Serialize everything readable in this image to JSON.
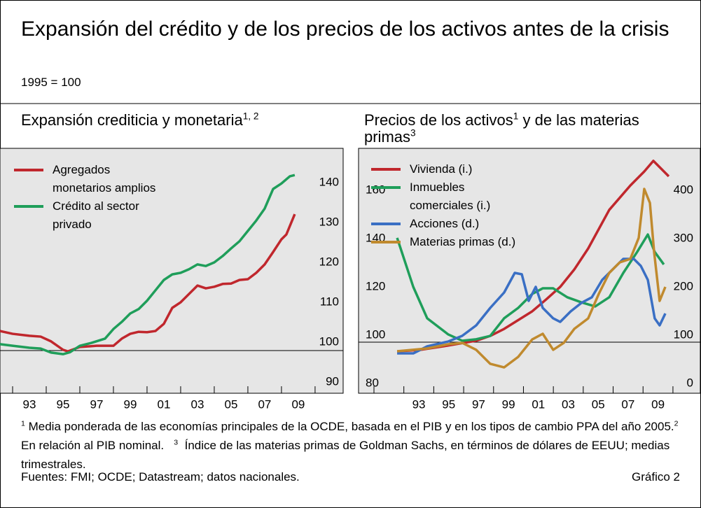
{
  "title": "Expansión del crédito y de los precios de los activos antes de la crisis",
  "subtitle": "1995 = 100",
  "chart_data": [
    {
      "type": "line",
      "title": "Expansión crediticia y monetaria",
      "title_note": "1, 2",
      "xlim": [
        1991.25,
        2011.67
      ],
      "ylim": [
        89.3,
        150.7
      ],
      "xticks": [
        {
          "value": 1993,
          "label": "93"
        },
        {
          "value": 1995,
          "label": "95"
        },
        {
          "value": 1997,
          "label": "97"
        },
        {
          "value": 1999,
          "label": "99"
        },
        {
          "value": 2001,
          "label": "01"
        },
        {
          "value": 2003,
          "label": "03"
        },
        {
          "value": 2005,
          "label": "05"
        },
        {
          "value": 2007,
          "label": "07"
        },
        {
          "value": 2009,
          "label": "09"
        }
      ],
      "xminor": [
        1992,
        1994,
        1996,
        1998,
        2000,
        2002,
        2004,
        2006,
        2008,
        2010
      ],
      "yticks": [
        90,
        100,
        110,
        120,
        130,
        140
      ],
      "hline": 100,
      "legend": "upper left",
      "series": [
        {
          "name": "Agregados monetarios amplios",
          "color": "#c0272d",
          "x": [
            1991.25,
            1992,
            1993,
            1993.67,
            1994.29,
            1995,
            1995.29,
            1996,
            1997,
            1998,
            1998.5,
            1999,
            1999.5,
            2000,
            2000.5,
            2001,
            2001.5,
            2002,
            2002.5,
            2003,
            2003.5,
            2004,
            2004.5,
            2005,
            2005.5,
            2006,
            2006.5,
            2007,
            2007.5,
            2008,
            2008.29,
            2008.79
          ],
          "values": [
            104.9,
            104.2,
            103.7,
            103.5,
            102.3,
            100.2,
            99.8,
            100.9,
            101.2,
            101.2,
            103,
            104.2,
            104.7,
            104.6,
            104.9,
            106.7,
            110.7,
            112.1,
            114.2,
            116.3,
            115.6,
            116,
            116.7,
            116.8,
            117.7,
            117.9,
            119.5,
            121.6,
            124.7,
            127.9,
            129.1,
            134.2
          ]
        },
        {
          "name": "Crédito al sector privado",
          "color": "#1f9e5a",
          "x": [
            1991.25,
            1992,
            1993,
            1993.67,
            1994.29,
            1995,
            1995.42,
            1996,
            1996.67,
            1997.5,
            1998,
            1998.5,
            1999,
            1999.5,
            2000,
            2000.5,
            2001,
            2001.5,
            2002,
            2002.5,
            2003,
            2003.5,
            2004,
            2004.5,
            2005,
            2005.5,
            2006,
            2006.5,
            2007,
            2007.5,
            2008,
            2008.5,
            2008.79
          ],
          "values": [
            101.6,
            101.2,
            100.7,
            100.5,
            99.5,
            99.1,
            99.6,
            101.2,
            101.9,
            103,
            105.4,
            107.2,
            109.3,
            110.4,
            112.5,
            115.1,
            117.7,
            119.1,
            119.5,
            120.4,
            121.6,
            121.2,
            122.1,
            123.7,
            125.6,
            127.4,
            130,
            132.6,
            135.6,
            140.5,
            141.9,
            143.7,
            144
          ]
        }
      ]
    },
    {
      "type": "line",
      "title": "Precios de los activos",
      "title_note": "1",
      "title_cont": "y de las materias primas",
      "title_cont_note": "3",
      "xlim": [
        1988.97,
        2011.83
      ],
      "ylim": [
        78.84,
        180.29
      ],
      "y2lim": [
        -5.8,
        501.45
      ],
      "xticks": [
        {
          "value": 1993,
          "label": "93"
        },
        {
          "value": 1995,
          "label": "95"
        },
        {
          "value": 1997,
          "label": "97"
        },
        {
          "value": 1999,
          "label": "99"
        },
        {
          "value": 2001,
          "label": "01"
        },
        {
          "value": 2003,
          "label": "03"
        },
        {
          "value": 2005,
          "label": "05"
        },
        {
          "value": 2007,
          "label": "07"
        },
        {
          "value": 2009,
          "label": "09"
        }
      ],
      "xminor": [
        1990,
        1992,
        1994,
        1996,
        1998,
        2000,
        2002,
        2004,
        2006,
        2008,
        2010
      ],
      "yticks": [
        80,
        100,
        120,
        140,
        160
      ],
      "y2ticks": [
        0,
        100,
        200,
        300,
        400
      ],
      "hline": 100,
      "legend": "upper left",
      "series": [
        {
          "name": "Vivienda (i.)",
          "color": "#c0272d",
          "x": [
            1991.55,
            1993.09,
            1994.03,
            1994.97,
            1996.84,
            1997.78,
            1998.71,
            2000.59,
            2001.52,
            2002.46,
            2003.4,
            2004.33,
            2005.74,
            2007.15,
            2008.08,
            2008.69,
            2009.72
          ],
          "values": [
            96.2,
            96.8,
            97.7,
            98.6,
            100.6,
            102.6,
            105.5,
            112.8,
            117.7,
            122.9,
            130.1,
            138.8,
            154.8,
            164.9,
            170.7,
            175.1,
            168.7
          ]
        },
        {
          "name": "Inmuebles comerciales (i.)",
          "color": "#1f9e5a",
          "x": [
            1991.55,
            1992.63,
            1993.56,
            1994.97,
            1995.9,
            1996.84,
            1997.78,
            1998.71,
            1999.65,
            2000.59,
            2001.29,
            2001.99,
            2002.93,
            2003.87,
            2004.8,
            2005.74,
            2006.68,
            2007.61,
            2008.32,
            2008.78,
            2009.39
          ],
          "values": [
            143.2,
            122.9,
            109.9,
            103.2,
            100.6,
            101.2,
            102.6,
            109.9,
            114.2,
            120,
            122.3,
            122.3,
            118.6,
            116.5,
            114.8,
            118.6,
            128.7,
            137.4,
            144.6,
            137.4,
            132.2
          ]
        },
        {
          "name": "Acciones (d.)",
          "color": "#3a6fc4",
          "axis": "y2",
          "x": [
            1991.55,
            1992.63,
            1993.56,
            1994.97,
            1995.9,
            1996.84,
            1997.78,
            1998.71,
            1999.42,
            1999.89,
            2000.35,
            2000.82,
            2001.29,
            2001.99,
            2002.46,
            2003.16,
            2003.87,
            2004.57,
            2005.27,
            2005.97,
            2006.68,
            2007.38,
            2007.85,
            2008.32,
            2008.78,
            2009.11,
            2009.49
          ],
          "values": [
            76.8,
            76.8,
            91.3,
            101.4,
            113,
            134.8,
            171,
            202.9,
            243.5,
            240.6,
            185.5,
            214.5,
            171,
            149.3,
            142,
            163.8,
            181.2,
            192.8,
            229,
            250.7,
            272.5,
            272.5,
            258,
            229,
            149.3,
            134.8,
            159.4
          ]
        },
        {
          "name": "Materias primas (d.)",
          "color": "#c08a2e",
          "axis": "y2",
          "x": [
            1991.55,
            1993.56,
            1994.97,
            1995.9,
            1996.84,
            1997.78,
            1998.71,
            1999.65,
            2000.59,
            2001.29,
            2001.99,
            2002.7,
            2003.4,
            2004.33,
            2005.04,
            2005.74,
            2006.44,
            2007.15,
            2007.71,
            2008.08,
            2008.46,
            2008.74,
            2009.11,
            2009.49
          ],
          "values": [
            81.2,
            87,
            95.7,
            98.6,
            84.1,
            55.1,
            47.8,
            69.6,
            105.8,
            117.4,
            84.1,
            98.6,
            127.5,
            149.3,
            200,
            243.5,
            265.2,
            272.5,
            316,
            417.4,
            388.4,
            286.9,
            185.5,
            214.5
          ]
        }
      ]
    }
  ],
  "notes": [
    {
      "mark": "1",
      "text": "Media ponderada de las economías principales de la OCDE, basada en el PIB y en los tipos de cambio PPA del año 2005."
    },
    {
      "mark": "2",
      "text": "En relación al PIB nominal."
    },
    {
      "mark": "3",
      "text": "Índice de las materias primas de Goldman Sachs, en términos de dólares de EEUU; medias trimestrales."
    }
  ],
  "sources": "Fuentes: FMI; OCDE; Datastream; datos nacionales.",
  "figure_label": "Gráfico 2"
}
